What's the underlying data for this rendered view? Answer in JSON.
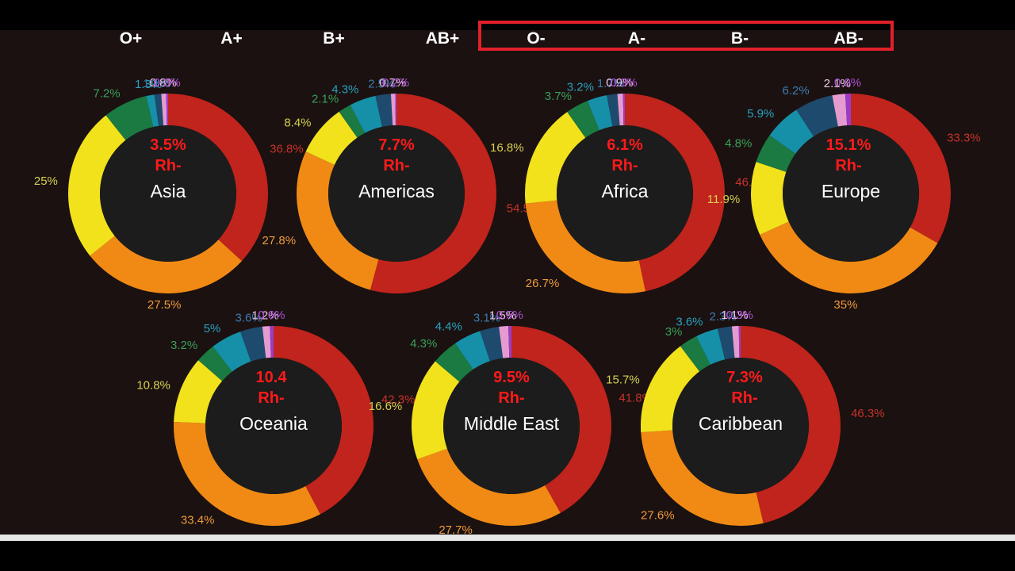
{
  "colors": {
    "background": "#1a1110",
    "inner_circle": "#1c1c1c",
    "highlight_box": "#e0202a",
    "rh_text": "#ff1a1a",
    "type_colors": [
      "#c0241c",
      "#f08a14",
      "#f2e21c",
      "#1a7a42",
      "#1690a8",
      "#1e4a6e",
      "#e69bd0",
      "#9a3cc8"
    ],
    "label_colors": [
      "#c8322a",
      "#f09a3c",
      "#d8d050",
      "#3aa05a",
      "#28a0c0",
      "#3c7cb4",
      "#f0c8e8",
      "#b050d8"
    ]
  },
  "header": {
    "blood_types": [
      "O+",
      "A+",
      "B+",
      "AB+",
      "O-",
      "A-",
      "B-",
      "AB-"
    ],
    "highlighted": [
      "O-",
      "A-",
      "B-",
      "AB-"
    ]
  },
  "chart_data": [
    {
      "type": "donut",
      "region": "Asia",
      "rh_negative": "3.5%",
      "rh_label": "Rh-",
      "categories": [
        "O+",
        "A+",
        "B+",
        "AB+",
        "O-",
        "A-",
        "B-",
        "AB-"
      ],
      "values": [
        36.8,
        27.5,
        25,
        7.2,
        1.3,
        1.1,
        0.8,
        0.3
      ],
      "labels": [
        "36.8%",
        "27.5%",
        "25%",
        "7.2%",
        "1.3%",
        "1.1%",
        "0.8%",
        "0.3%"
      ]
    },
    {
      "type": "donut",
      "region": "Americas",
      "rh_negative": "7.7%",
      "rh_label": "Rh-",
      "categories": [
        "O+",
        "A+",
        "B+",
        "AB+",
        "O-",
        "A-",
        "B-",
        "AB-"
      ],
      "values": [
        54.5,
        27.8,
        8.4,
        2.1,
        4.3,
        2.5,
        0.7,
        0.2
      ],
      "labels": [
        "54.5%",
        "27.8%",
        "8.4%",
        "2.1%",
        "4.3%",
        "2.5%",
        "0.7%",
        "0.2%"
      ]
    },
    {
      "type": "donut",
      "region": "Africa",
      "rh_negative": "6.1%",
      "rh_label": "Rh-",
      "categories": [
        "O+",
        "A+",
        "B+",
        "AB+",
        "O-",
        "A-",
        "B-",
        "AB-"
      ],
      "values": [
        46.7,
        26.7,
        16.8,
        3.7,
        3.2,
        1.7,
        0.9,
        0.3
      ],
      "labels": [
        "46.7%",
        "26.7%",
        "16.8%",
        "3.7%",
        "3.2%",
        "1.7%",
        "0.9%",
        "0.3%"
      ]
    },
    {
      "type": "donut",
      "region": "Europe",
      "rh_negative": "15.1%",
      "rh_label": "Rh-",
      "categories": [
        "O+",
        "A+",
        "B+",
        "AB+",
        "O-",
        "A-",
        "B-",
        "AB-"
      ],
      "values": [
        33.3,
        35,
        11.9,
        4.8,
        5.9,
        6.2,
        2.1,
        0.9
      ],
      "labels": [
        "33.3%",
        "35%",
        "11.9%",
        "4.8%",
        "5.9%",
        "6.2%",
        "2.1%",
        "0.9%"
      ]
    },
    {
      "type": "donut",
      "region": "Oceania",
      "rh_negative": "10.4",
      "rh_label": "Rh-",
      "categories": [
        "O+",
        "A+",
        "B+",
        "AB+",
        "O-",
        "A-",
        "B-",
        "AB-"
      ],
      "values": [
        42.3,
        33.4,
        10.8,
        3.2,
        5,
        3.6,
        1.2,
        0.6
      ],
      "labels": [
        "42.3%",
        "33.4%",
        "10.8%",
        "3.2%",
        "5%",
        "3.6%",
        "1.2%",
        "0.6%"
      ]
    },
    {
      "type": "donut",
      "region": "Middle East",
      "rh_negative": "9.5%",
      "rh_label": "Rh-",
      "categories": [
        "O+",
        "A+",
        "B+",
        "AB+",
        "O-",
        "A-",
        "B-",
        "AB-"
      ],
      "values": [
        41.8,
        27.7,
        16.6,
        4.3,
        4.4,
        3.1,
        1.5,
        0.5
      ],
      "labels": [
        "41.8%",
        "27.7%",
        "16.6%",
        "4.3%",
        "4.4%",
        "3.1%",
        "1.5%",
        "0.5%"
      ]
    },
    {
      "type": "donut",
      "region": "Caribbean",
      "rh_negative": "7.3%",
      "rh_label": "Rh-",
      "categories": [
        "O+",
        "A+",
        "B+",
        "AB+",
        "O-",
        "A-",
        "B-",
        "AB-"
      ],
      "values": [
        46.3,
        27.6,
        15.7,
        3,
        3.6,
        2.3,
        1.1,
        0.3
      ],
      "labels": [
        "46.3%",
        "27.6%",
        "15.7%",
        "3%",
        "3.6%",
        "2.3%",
        "1.1%",
        "0.3%"
      ]
    }
  ]
}
